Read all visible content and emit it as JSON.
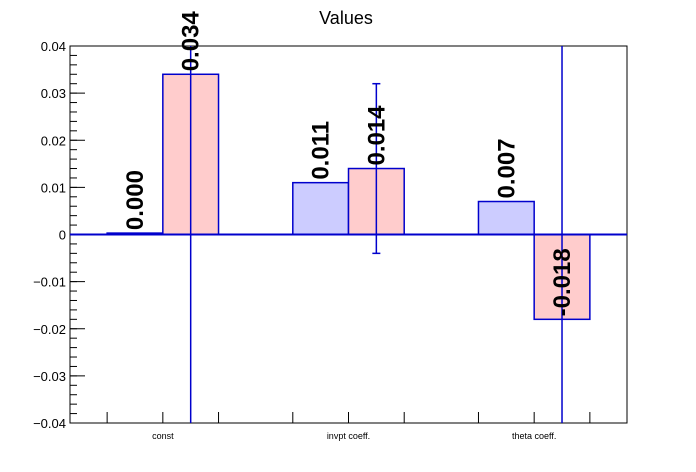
{
  "chart_data": {
    "type": "bar",
    "title": "Values",
    "xlabel": "",
    "ylabel": "",
    "ylim": [
      -0.04,
      0.04
    ],
    "categories": [
      "const",
      "invpt coeff.",
      "theta coeff."
    ],
    "y_ticks": [
      "-0.04",
      "-0.03",
      "-0.02",
      "-0.01",
      "0",
      "0.01",
      "0.02",
      "0.03",
      "0.04"
    ],
    "y_tick_values": [
      -0.04,
      -0.03,
      -0.02,
      -0.01,
      0,
      0.01,
      0.02,
      0.03,
      0.04
    ],
    "grid": false,
    "series": [
      {
        "color": "#ccccff",
        "values": [
          0.0003,
          0.011,
          0.007
        ],
        "value_labels": [
          "0.000",
          "0.011",
          "0.007"
        ],
        "errors": [
          0,
          0,
          0
        ]
      },
      {
        "color": "#ffcccc",
        "values": [
          0.034,
          0.014,
          -0.018
        ],
        "value_labels": [
          "0.034",
          "0.014",
          "-0.018"
        ],
        "errors": [
          0.08,
          0.018,
          0.08
        ]
      }
    ],
    "edge_color": "#0000cc"
  }
}
